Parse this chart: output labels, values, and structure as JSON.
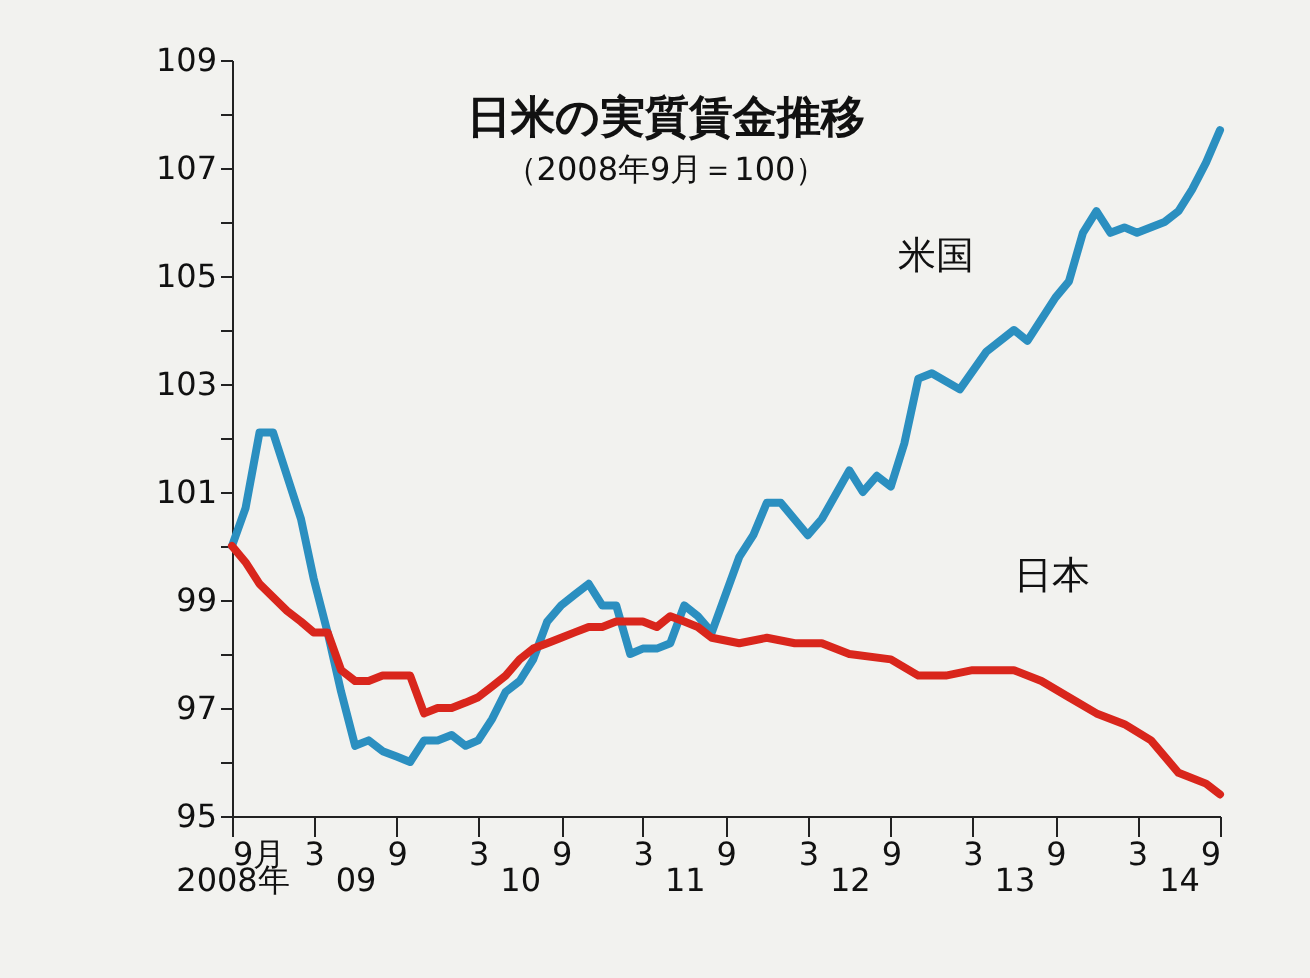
{
  "chart_data": {
    "type": "line",
    "title": "日米の実質賃金推移",
    "subtitle": "（2008年9月＝100）",
    "x": [
      "2008-09",
      "2008-10",
      "2008-11",
      "2008-12",
      "2009-02",
      "2009-03",
      "2009-04",
      "2009-05",
      "2009-06",
      "2009-07",
      "2009-08",
      "2009-09",
      "2009-10",
      "2009-11",
      "2009-12",
      "2010-01",
      "2010-02",
      "2010-03",
      "2010-04",
      "2010-05",
      "2010-06",
      "2010-07",
      "2010-08",
      "2010-09",
      "2010-10",
      "2010-11",
      "2010-12",
      "2011-01",
      "2011-02",
      "2011-03",
      "2011-04",
      "2011-05",
      "2011-06",
      "2011-07",
      "2011-08",
      "2011-10",
      "2011-11",
      "2011-12",
      "2012-01",
      "2012-03",
      "2012-04",
      "2012-06",
      "2012-07",
      "2012-08",
      "2012-09",
      "2012-10",
      "2012-11",
      "2012-12",
      "2013-02",
      "2013-04",
      "2013-06",
      "2013-07",
      "2013-09",
      "2013-10",
      "2013-11",
      "2013-12",
      "2014-01",
      "2014-02",
      "2014-03",
      "2014-05",
      "2014-06",
      "2014-07",
      "2014-08",
      "2014-09"
    ],
    "series": [
      {
        "name": "米国",
        "color": "#2b8fc0",
        "values": [
          100.0,
          100.7,
          102.1,
          102.1,
          100.5,
          99.4,
          98.4,
          97.3,
          96.3,
          96.4,
          96.2,
          96.1,
          96.0,
          96.4,
          96.4,
          96.5,
          96.3,
          96.4,
          96.8,
          97.3,
          97.5,
          97.9,
          98.6,
          98.9,
          99.1,
          99.3,
          98.9,
          98.9,
          98.0,
          98.1,
          98.1,
          98.2,
          98.9,
          98.7,
          98.4,
          99.8,
          100.2,
          100.8,
          100.8,
          100.2,
          100.5,
          101.4,
          101.0,
          101.3,
          101.1,
          101.9,
          103.1,
          103.2,
          102.9,
          103.6,
          104.0,
          103.8,
          104.6,
          104.9,
          105.8,
          106.2,
          105.8,
          105.9,
          105.8,
          106.0,
          106.2,
          106.6,
          107.1,
          107.7
        ]
      },
      {
        "name": "日本",
        "color": "#d9261c",
        "x": [
          "2008-09",
          "2008-10",
          "2008-11",
          "2009-01",
          "2009-02",
          "2009-03",
          "2009-04",
          "2009-05",
          "2009-06",
          "2009-07",
          "2009-08",
          "2009-09",
          "2009-10",
          "2009-11",
          "2009-12",
          "2010-01",
          "2010-02",
          "2010-03",
          "2010-04",
          "2010-05",
          "2010-06",
          "2010-07",
          "2010-08",
          "2010-09",
          "2010-10",
          "2010-11",
          "2010-12",
          "2011-01",
          "2011-02",
          "2011-03",
          "2011-04",
          "2011-05",
          "2011-06",
          "2011-07",
          "2011-08",
          "2011-10",
          "2011-12",
          "2012-02",
          "2012-04",
          "2012-06",
          "2012-09",
          "2012-11",
          "2013-01",
          "2013-03",
          "2013-05",
          "2013-06",
          "2013-08",
          "2013-10",
          "2013-12",
          "2014-02",
          "2014-04",
          "2014-06",
          "2014-08",
          "2014-09"
        ],
        "values": [
          100.0,
          99.7,
          99.3,
          98.8,
          98.6,
          98.4,
          98.4,
          97.7,
          97.5,
          97.5,
          97.6,
          97.6,
          97.6,
          96.9,
          97.0,
          97.0,
          97.1,
          97.2,
          97.4,
          97.6,
          97.9,
          98.1,
          98.2,
          98.3,
          98.4,
          98.5,
          98.5,
          98.6,
          98.6,
          98.6,
          98.5,
          98.7,
          98.6,
          98.5,
          98.3,
          98.2,
          98.3,
          98.2,
          98.2,
          98.0,
          97.9,
          97.6,
          97.6,
          97.7,
          97.7,
          97.7,
          97.5,
          97.2,
          96.9,
          96.7,
          96.4,
          95.8,
          95.6,
          95.4
        ]
      }
    ],
    "xlim": [
      "2008-09",
      "2014-09"
    ],
    "xticks": [
      {
        "value": "2008-09",
        "label": "9月"
      },
      {
        "value": "2009-03",
        "label": "3"
      },
      {
        "value": "2009-09",
        "label": "9"
      },
      {
        "value": "2010-03",
        "label": "3"
      },
      {
        "value": "2010-09",
        "label": "9"
      },
      {
        "value": "2011-03",
        "label": "3"
      },
      {
        "value": "2011-09",
        "label": "9"
      },
      {
        "value": "2012-03",
        "label": "3"
      },
      {
        "value": "2012-09",
        "label": "9"
      },
      {
        "value": "2013-03",
        "label": "3"
      },
      {
        "value": "2013-09",
        "label": "9"
      },
      {
        "value": "2014-03",
        "label": "3"
      },
      {
        "value": "2014-09",
        "label": "9"
      }
    ],
    "x2lim": [
      "2008-09",
      "2014-09"
    ],
    "x2ticks": [
      {
        "value": "2008-09",
        "label": "2008年"
      },
      {
        "value": "2009-06",
        "label": "09"
      },
      {
        "value": "2010-06",
        "label": "10"
      },
      {
        "value": "2011-06",
        "label": "11"
      },
      {
        "value": "2012-06",
        "label": "12"
      },
      {
        "value": "2013-06",
        "label": "13"
      },
      {
        "value": "2014-06",
        "label": "14"
      }
    ],
    "ylim": [
      95,
      109
    ],
    "yticks": [
      95,
      {
        "value": 96,
        "label": null
      },
      97,
      {
        "value": 98,
        "label": null
      },
      99,
      {
        "value": 100,
        "label": null
      },
      101,
      {
        "value": 102,
        "label": null
      },
      103,
      {
        "value": 104,
        "label": null
      },
      105,
      {
        "value": 106,
        "label": null
      },
      107,
      {
        "value": 108,
        "label": null
      },
      109
    ],
    "grid": false,
    "legend": false,
    "line_style": "solid",
    "marker": "none"
  }
}
